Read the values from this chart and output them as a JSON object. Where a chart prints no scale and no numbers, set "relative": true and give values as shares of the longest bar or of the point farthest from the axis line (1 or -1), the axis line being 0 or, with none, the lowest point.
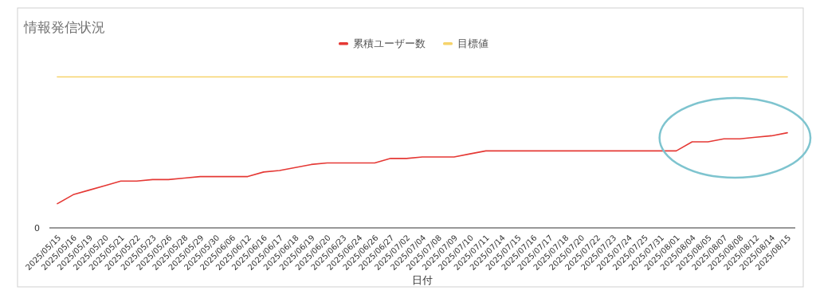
{
  "chart_data": {
    "type": "line",
    "title": "情報発信状況",
    "xlabel": "日付",
    "relative": true,
    "legend": "top",
    "grid": false,
    "marker": "none",
    "line_style": "solid",
    "annotations": [
      "0"
    ],
    "categories": [
      "2025/05/15",
      "2025/05/16",
      "2025/05/19",
      "2025/05/20",
      "2025/05/21",
      "2025/05/22",
      "2025/05/23",
      "2025/05/26",
      "2025/05/28",
      "2025/05/29",
      "2025/05/30",
      "2025/06/06",
      "2025/06/12",
      "2025/06/16",
      "2025/06/17",
      "2025/06/18",
      "2025/06/19",
      "2025/06/20",
      "2025/06/23",
      "2025/06/24",
      "2025/06/26",
      "2025/06/27",
      "2025/07/02",
      "2025/07/04",
      "2025/07/08",
      "2025/07/09",
      "2025/07/10",
      "2025/07/11",
      "2025/07/14",
      "2025/07/15",
      "2025/07/16",
      "2025/07/17",
      "2025/07/18",
      "2025/07/20",
      "2025/07/22",
      "2025/07/23",
      "2025/07/24",
      "2025/07/25",
      "2025/07/31",
      "2025/08/01",
      "2025/08/04",
      "2025/08/05",
      "2025/08/07",
      "2025/08/08",
      "2025/08/12",
      "2025/08/14",
      "2025/08/15"
    ],
    "series": [
      {
        "name": "累積ユーザー数",
        "color": "#e53935",
        "values": [
          0.16,
          0.22,
          0.25,
          0.28,
          0.31,
          0.31,
          0.32,
          0.32,
          0.33,
          0.34,
          0.34,
          0.34,
          0.34,
          0.37,
          0.38,
          0.4,
          0.42,
          0.43,
          0.43,
          0.43,
          0.43,
          0.46,
          0.46,
          0.47,
          0.47,
          0.47,
          0.49,
          0.51,
          0.51,
          0.51,
          0.51,
          0.51,
          0.51,
          0.51,
          0.51,
          0.51,
          0.51,
          0.51,
          0.51,
          0.51,
          0.57,
          0.57,
          0.59,
          0.59,
          0.6,
          0.61,
          0.63
        ]
      },
      {
        "name": "目標値",
        "color": "#f6d36b",
        "values": [
          1,
          1,
          1,
          1,
          1,
          1,
          1,
          1,
          1,
          1,
          1,
          1,
          1,
          1,
          1,
          1,
          1,
          1,
          1,
          1,
          1,
          1,
          1,
          1,
          1,
          1,
          1,
          1,
          1,
          1,
          1,
          1,
          1,
          1,
          1,
          1,
          1,
          1,
          1,
          1,
          1,
          1,
          1,
          1,
          1,
          1,
          1
        ]
      }
    ]
  }
}
